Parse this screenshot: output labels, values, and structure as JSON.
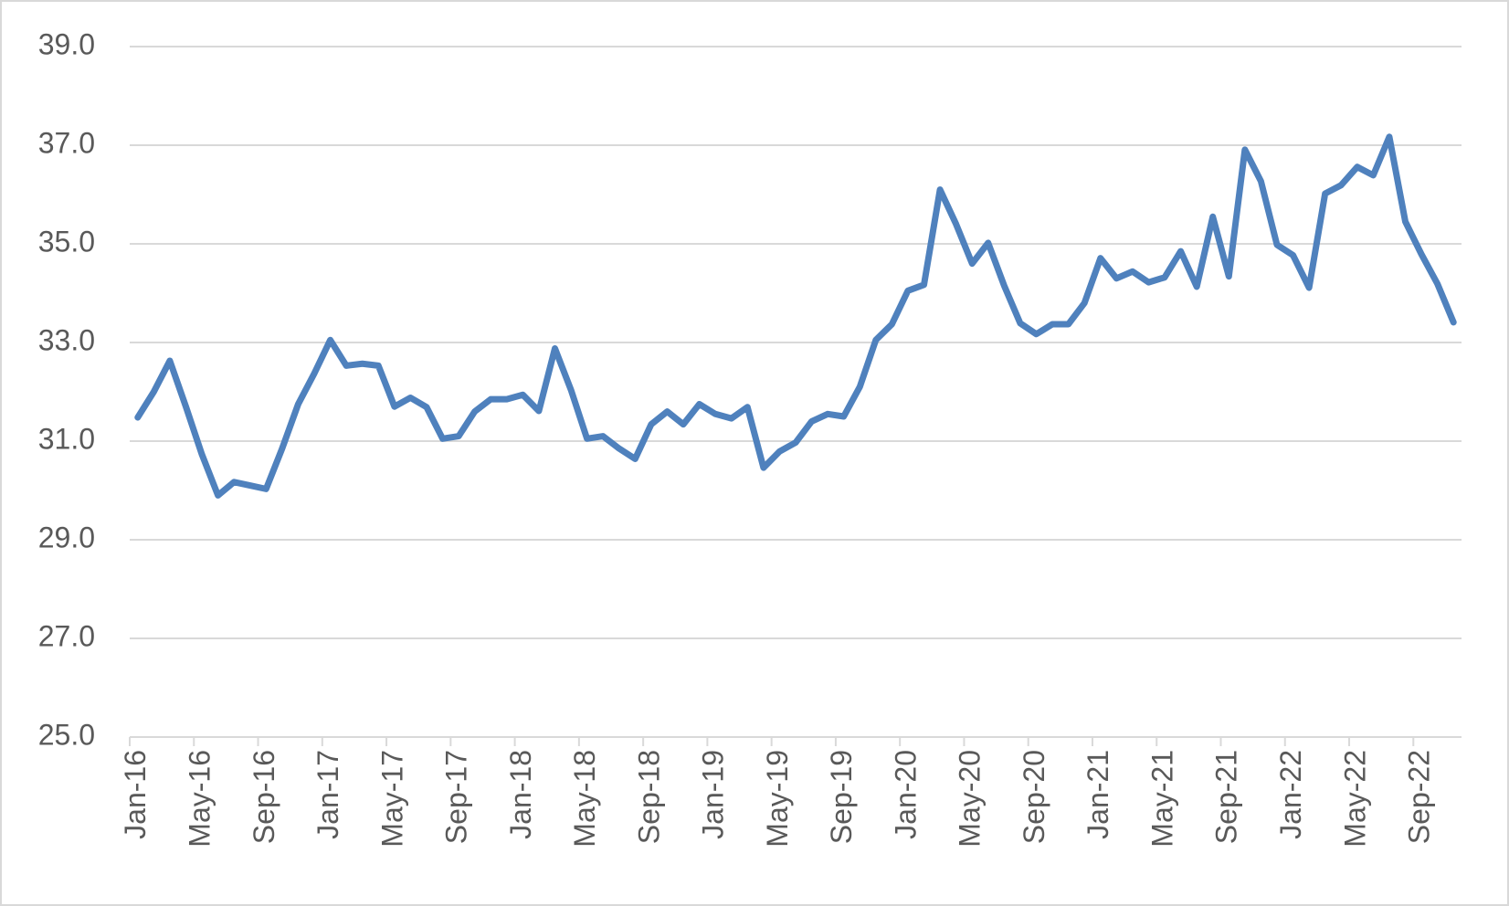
{
  "chart_data": {
    "type": "line",
    "categories": [
      "Jan-16",
      null,
      null,
      null,
      "May-16",
      null,
      null,
      null,
      "Sep-16",
      null,
      null,
      null,
      "Jan-17",
      null,
      null,
      null,
      "May-17",
      null,
      null,
      null,
      "Sep-17",
      null,
      null,
      null,
      "Jan-18",
      null,
      null,
      null,
      "May-18",
      null,
      null,
      null,
      "Sep-18",
      null,
      null,
      null,
      "Jan-19",
      null,
      null,
      null,
      "May-19",
      null,
      null,
      null,
      "Sep-19",
      null,
      null,
      null,
      "Jan-20",
      null,
      null,
      null,
      "May-20",
      null,
      null,
      null,
      "Sep-20",
      null,
      null,
      null,
      "Jan-21",
      null,
      null,
      null,
      "May-21",
      null,
      null,
      null,
      "Sep-21",
      null,
      null,
      null,
      "Jan-22",
      null,
      null,
      null,
      "May-22",
      null,
      null,
      null,
      "Sep-22",
      null,
      null
    ],
    "series": [
      {
        "color": "#4f81bd",
        "values": [
          31.48,
          32.0,
          32.63,
          31.7,
          30.73,
          29.9,
          30.17,
          30.1,
          30.03,
          30.85,
          31.75,
          32.37,
          33.05,
          32.53,
          32.57,
          32.53,
          31.7,
          31.88,
          31.69,
          31.05,
          31.1,
          31.6,
          31.85,
          31.85,
          31.94,
          31.61,
          32.88,
          32.04,
          31.05,
          31.1,
          30.85,
          30.64,
          31.34,
          31.6,
          31.34,
          31.75,
          31.55,
          31.46,
          31.69,
          30.46,
          30.79,
          30.97,
          31.4,
          31.55,
          31.5,
          32.1,
          33.05,
          33.37,
          34.05,
          34.17,
          36.1,
          35.4,
          34.6,
          35.02,
          34.15,
          33.39,
          33.17,
          33.37,
          33.37,
          33.8,
          34.71,
          34.3,
          34.44,
          34.22,
          34.32,
          34.85,
          34.13,
          35.55,
          34.34,
          36.91,
          36.27,
          34.98,
          34.77,
          34.11,
          36.02,
          36.19,
          36.56,
          36.39,
          37.17,
          35.45,
          34.79,
          34.19,
          33.41
        ]
      }
    ],
    "ylim": [
      25,
      39
    ],
    "yticks": [
      {
        "value": 25,
        "label": "25.0"
      },
      {
        "value": 27,
        "label": "27.0"
      },
      {
        "value": 29,
        "label": "29.0"
      },
      {
        "value": 31,
        "label": "31.0"
      },
      {
        "value": 33,
        "label": "33.0"
      },
      {
        "value": 35,
        "label": "35.0"
      },
      {
        "value": 37,
        "label": "37.0"
      },
      {
        "value": 39,
        "label": "39.0"
      }
    ],
    "grid": true
  }
}
